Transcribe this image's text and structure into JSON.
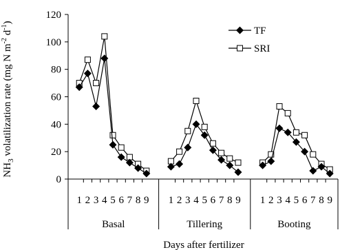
{
  "chart_data": {
    "type": "line",
    "title": "",
    "xlabel": "Days after fertilizer",
    "ylabel": "NH3 volatilization rate (mg N m-2 d-1)",
    "ylabel_parts": {
      "prefix": "NH",
      "sub": "3",
      "middle": " volatilization rate (mg N m",
      "sup1": "-2",
      "d": " d",
      "sup2": "-1",
      "close": ")"
    },
    "ylim": [
      0,
      120
    ],
    "yticks": [
      0,
      20,
      40,
      60,
      80,
      100,
      120
    ],
    "groups": [
      {
        "name": "Basal",
        "days": [
          "1",
          "2",
          "3",
          "4",
          "5",
          "6",
          "7",
          "8",
          "9"
        ]
      },
      {
        "name": "Tillering",
        "days": [
          "1",
          "2",
          "3",
          "4",
          "5",
          "6",
          "7",
          "8",
          "9"
        ]
      },
      {
        "name": "Booting",
        "days": [
          "1",
          "2",
          "3",
          "4",
          "5",
          "6",
          "7",
          "8",
          "9"
        ]
      }
    ],
    "legend_position": "top-right",
    "grid": false,
    "series": [
      {
        "name": "TF",
        "marker": "filled-diamond",
        "color": "#000000",
        "values": [
          [
            67,
            77,
            53,
            88,
            25,
            16,
            12,
            8,
            4
          ],
          [
            9,
            11,
            23,
            40,
            32,
            21,
            14,
            10,
            5
          ],
          [
            10,
            13,
            37,
            34,
            27,
            20,
            6,
            9,
            4
          ]
        ]
      },
      {
        "name": "SRI",
        "marker": "open-square",
        "color": "#000000",
        "values": [
          [
            70,
            87,
            70,
            104,
            32,
            23,
            16,
            11,
            6
          ],
          [
            13,
            20,
            35,
            57,
            38,
            26,
            19,
            15,
            12
          ],
          [
            12,
            18,
            53,
            48,
            34,
            32,
            18,
            11,
            7
          ]
        ]
      }
    ]
  }
}
